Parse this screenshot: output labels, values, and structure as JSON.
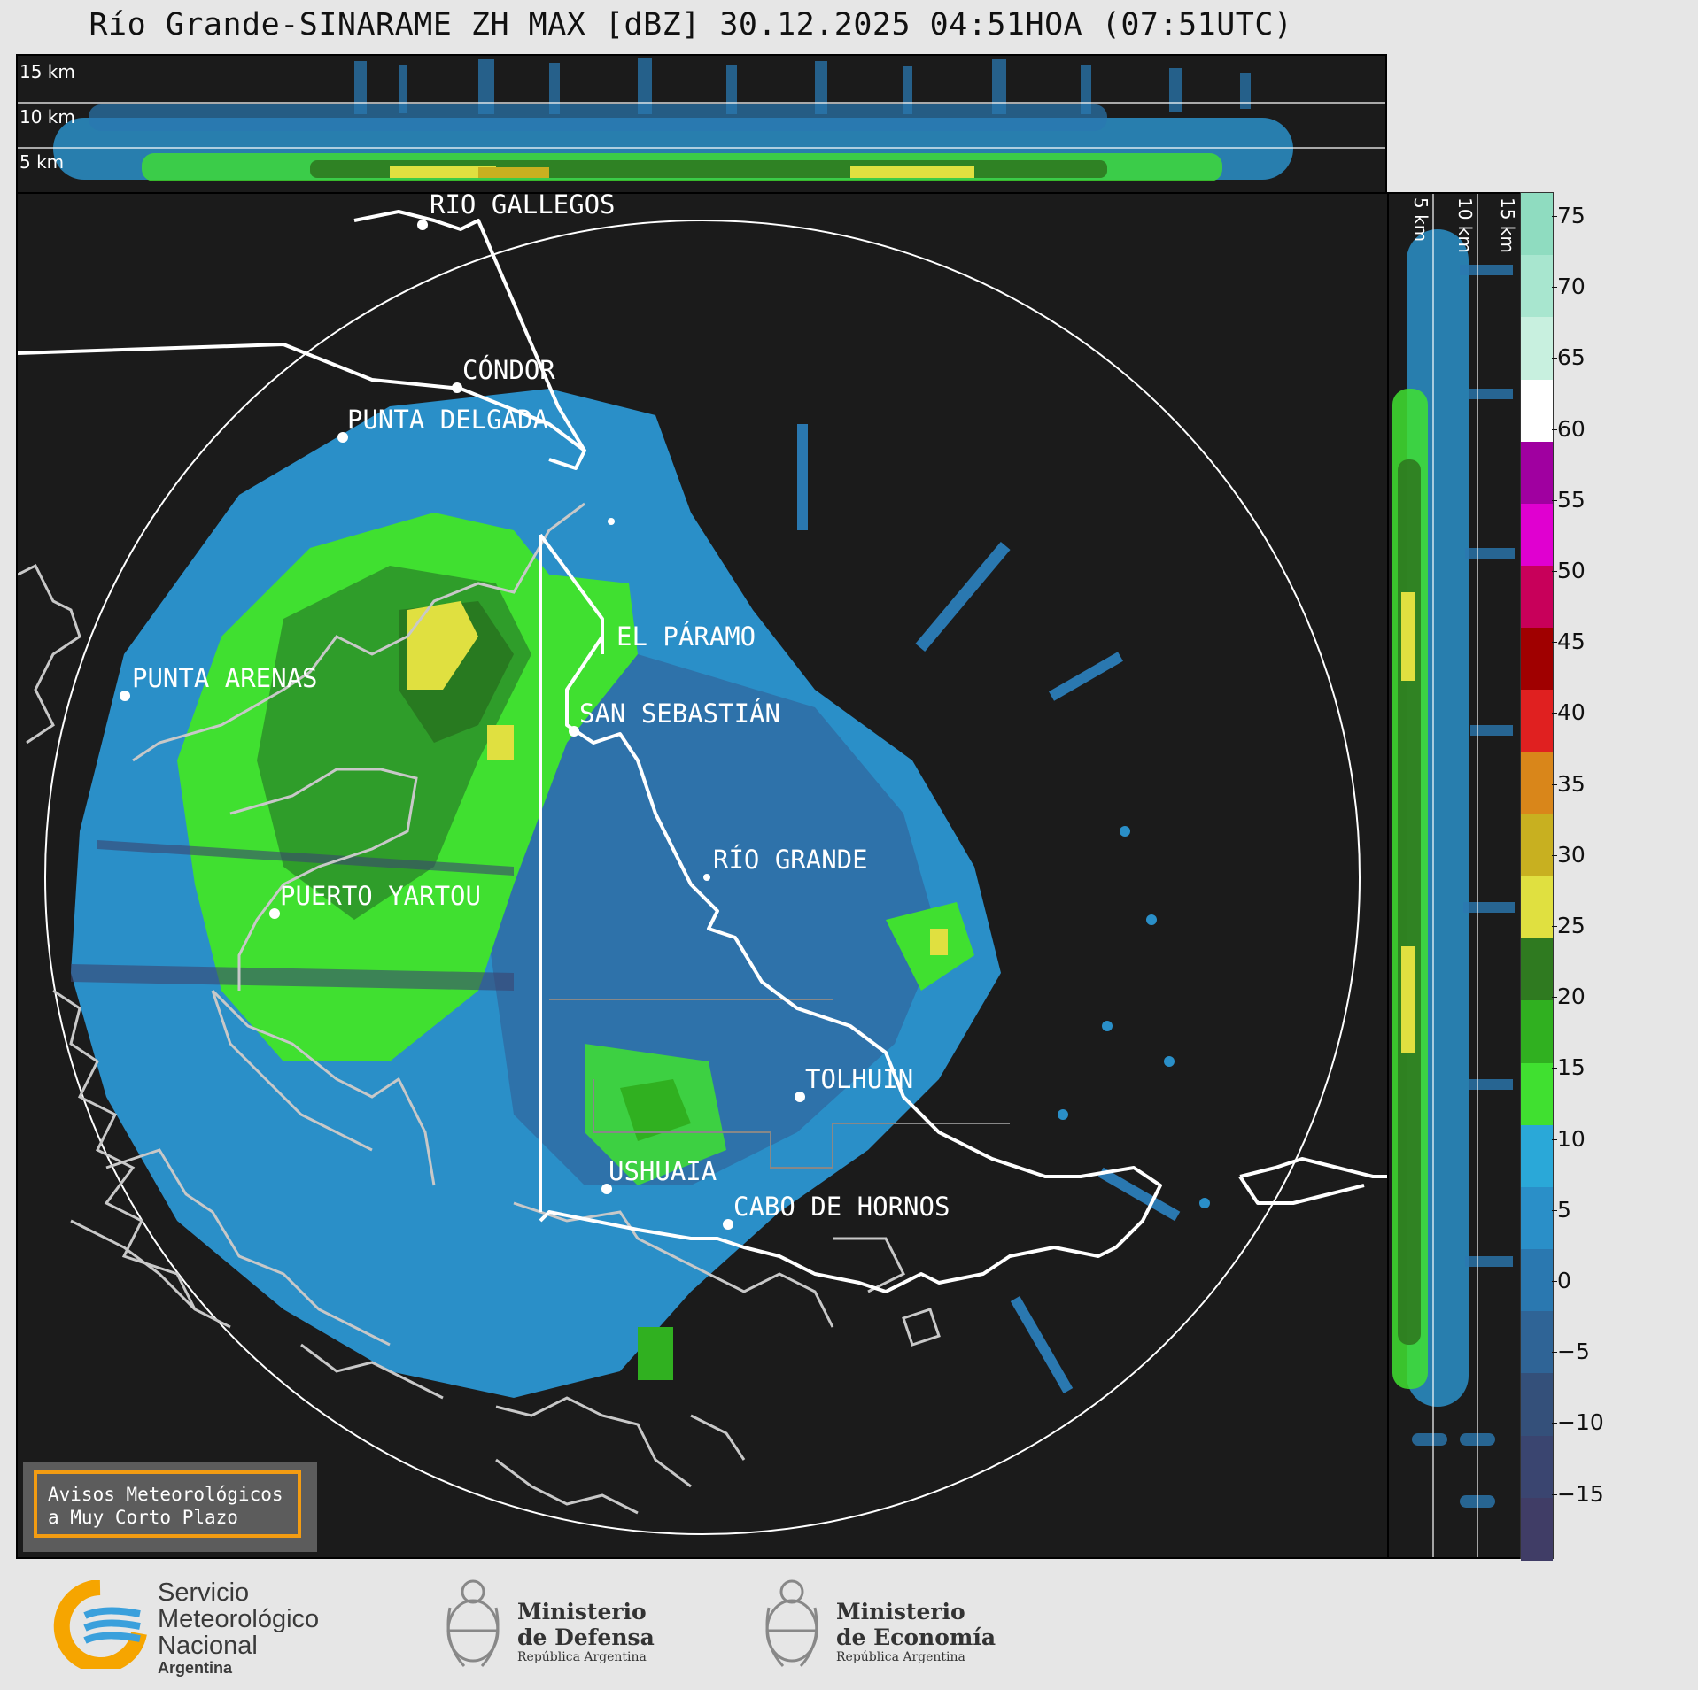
{
  "title": "Río Grande-SINARAME ZH MAX [dBZ] 30.12.2025 04:51HOA (07:51UTC)",
  "top_section": {
    "altitude_labels": [
      "15 km",
      "10 km",
      "5 km"
    ]
  },
  "right_section": {
    "altitude_labels": [
      "5 km",
      "10 km",
      "15 km"
    ]
  },
  "map": {
    "cities": [
      {
        "name": "RÍO GALLEGOS"
      },
      {
        "name": "CÓNDOR"
      },
      {
        "name": "PUNTA DELGADA"
      },
      {
        "name": "EL PÁRAMO"
      },
      {
        "name": "SAN SEBASTIÁN"
      },
      {
        "name": "PUNTA ARENAS"
      },
      {
        "name": "RÍO GRANDE"
      },
      {
        "name": "PUERTO YARTOU"
      },
      {
        "name": "TOLHUIN"
      },
      {
        "name": "USHUAIA"
      },
      {
        "name": "CABO DE HORNOS"
      }
    ]
  },
  "colorbar": {
    "unit": "dBZ",
    "ticks": [
      "75",
      "70",
      "65",
      "60",
      "55",
      "50",
      "45",
      "40",
      "35",
      "30",
      "25",
      "20",
      "15",
      "10",
      "5",
      "0",
      "−5",
      "−10",
      "−15"
    ],
    "colors": [
      "#8fdcc0",
      "#a8e6cf",
      "#c8f0df",
      "#ffffff",
      "#a000a0",
      "#e000d0",
      "#c8005a",
      "#a00000",
      "#e02020",
      "#d9861a",
      "#c8b020",
      "#e0e040",
      "#2f7a20",
      "#30b020",
      "#40e030",
      "#2aa8d8",
      "#2a8fc8",
      "#2a78b0",
      "#2f6496",
      "#34507a",
      "#3a4570",
      "#403d66"
    ]
  },
  "warning_box": {
    "line1": "Avisos Meteorológicos",
    "line2": "a Muy Corto Plazo"
  },
  "footer": {
    "smn": {
      "line1": "Servicio",
      "line2": "Meteorológico",
      "line3": "Nacional",
      "line4": "Argentina"
    },
    "defensa": {
      "line1": "Ministerio",
      "line2": "de Defensa",
      "line3": "República Argentina"
    },
    "economia": {
      "line1": "Ministerio",
      "line2": "de Economía",
      "line3": "República Argentina"
    }
  }
}
